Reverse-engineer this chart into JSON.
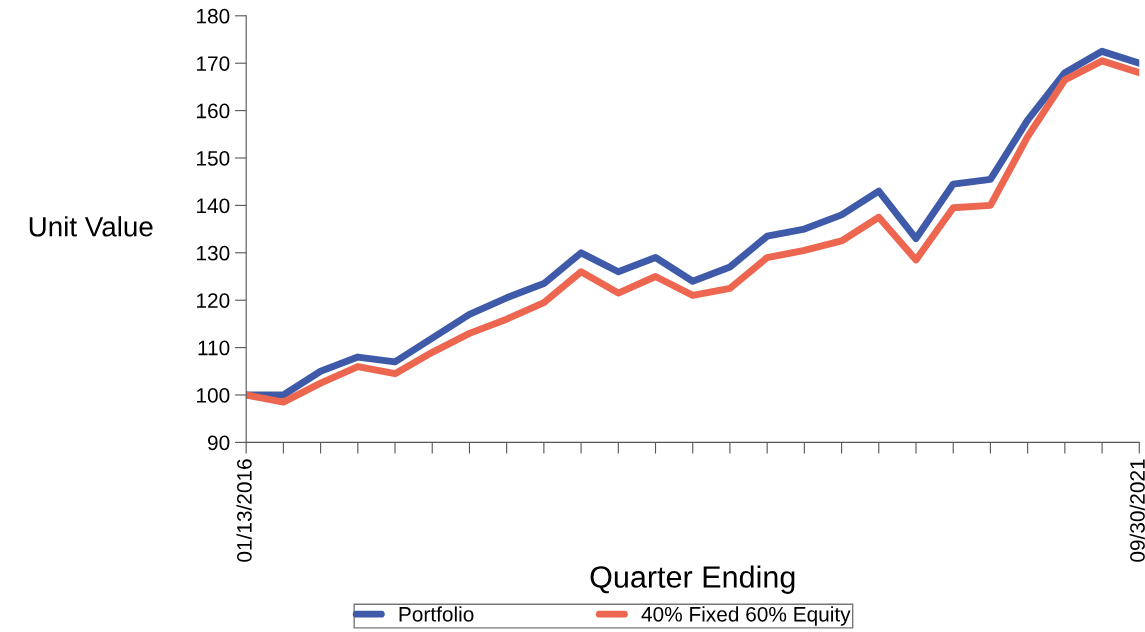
{
  "chart_data": {
    "type": "line",
    "xlabel": "Quarter Ending",
    "ylabel": "Unit Value",
    "categories": [
      "01/13/2016",
      null,
      null,
      null,
      null,
      null,
      null,
      null,
      null,
      null,
      null,
      null,
      null,
      null,
      null,
      null,
      null,
      null,
      null,
      null,
      null,
      null,
      null,
      null,
      "09/30/2021"
    ],
    "series": [
      {
        "name": "Portfolio",
        "color": "#3e5aa8",
        "values": [
          100,
          100,
          105,
          108,
          107,
          112,
          117,
          120.5,
          123.5,
          130,
          126,
          129,
          124,
          127,
          133.5,
          135,
          138,
          143,
          133,
          144.5,
          145.5,
          158,
          168,
          172.5,
          170
        ]
      },
      {
        "name": "40% Fixed 60% Equity",
        "color": "#ec6650",
        "values": [
          100,
          98.5,
          102.5,
          106,
          104.5,
          109,
          113,
          116,
          119.5,
          126,
          121.5,
          125,
          121,
          122.5,
          129,
          130.5,
          132.5,
          137.5,
          128.5,
          139.5,
          140,
          154.5,
          166.5,
          170.5,
          168
        ]
      }
    ],
    "ylim": [
      90,
      180
    ],
    "yticks": [
      90,
      100,
      110,
      120,
      130,
      140,
      150,
      160,
      170,
      180
    ],
    "grid": false,
    "legend": "bottom",
    "marker": "none",
    "line_style": "solid"
  }
}
